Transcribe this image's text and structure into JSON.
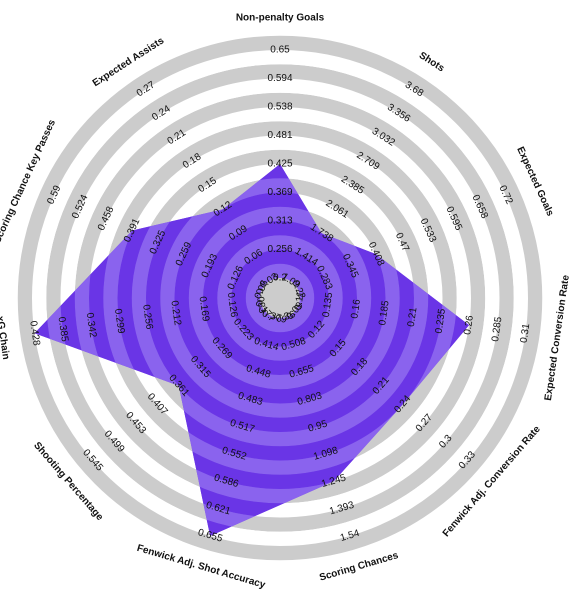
{
  "chart_data": {
    "type": "radar",
    "title": "",
    "colors": {
      "area": "#6a35e6",
      "rings": "#cccccc"
    },
    "axes": [
      {
        "label": "Non-penalty Goals",
        "ticks": [
          "0.2",
          "0.256",
          "0.313",
          "0.369",
          "0.425",
          "0.481",
          "0.538",
          "0.594",
          "0.65"
        ],
        "value": 0.425
      },
      {
        "label": "Shots",
        "ticks": [
          "1.09",
          "1.414",
          "1.738",
          "2.061",
          "2.385",
          "2.709",
          "3.032",
          "3.356",
          "3.68"
        ],
        "value": 1.738
      },
      {
        "label": "Expected Goals",
        "ticks": [
          "0.22",
          "0.283",
          "0.345",
          "0.408",
          "0.47",
          "0.533",
          "0.595",
          "0.658",
          "0.72"
        ],
        "value": 0.408
      },
      {
        "label": "Expected Conversion Rate",
        "ticks": [
          "0.11",
          "0.135",
          "0.16",
          "0.185",
          "0.21",
          "0.235",
          "0.26",
          "0.285",
          "0.31"
        ],
        "value": 0.26
      },
      {
        "label": "Fenwick Adj. Conversion Rate",
        "ticks": [
          "0.09",
          "0.12",
          "0.15",
          "0.18",
          "0.21",
          "0.24",
          "0.27",
          "0.3",
          "0.33"
        ],
        "value": 0.24
      },
      {
        "label": "Scoring Chances",
        "ticks": [
          "0.36",
          "0.508",
          "0.655",
          "0.803",
          "0.95",
          "1.098",
          "1.245",
          "1.393",
          "1.54"
        ],
        "value": 1.245
      },
      {
        "label": "Fenwick Adj. Shot Accuracy",
        "ticks": [
          "0.379",
          "0.414",
          "0.448",
          "0.483",
          "0.517",
          "0.552",
          "0.586",
          "0.621",
          "0.655"
        ],
        "value": 0.655
      },
      {
        "label": "Shooting Percentage",
        "ticks": [
          "0.177",
          "0.223",
          "0.269",
          "0.315",
          "0.361",
          "0.407",
          "0.453",
          "0.499",
          "0.545"
        ],
        "value": 0.361
      },
      {
        "label": "xG Chain",
        "ticks": [
          "0.083",
          "0.126",
          "0.169",
          "0.212",
          "0.256",
          "0.299",
          "0.342",
          "0.385",
          "0.428"
        ],
        "value": 0.428
      },
      {
        "label": "Scoring Chance Key Passes",
        "ticks": [
          "0.06",
          "0.126",
          "0.193",
          "0.259",
          "0.325",
          "0.391",
          "0.458",
          "0.524",
          "0.59"
        ],
        "value": 0.391
      },
      {
        "label": "Expected Assists",
        "ticks": [
          "0.03",
          "0.06",
          "0.09",
          "0.12",
          "0.15",
          "0.18",
          "0.21",
          "0.24",
          "0.27"
        ],
        "value": 0.12
      }
    ]
  }
}
